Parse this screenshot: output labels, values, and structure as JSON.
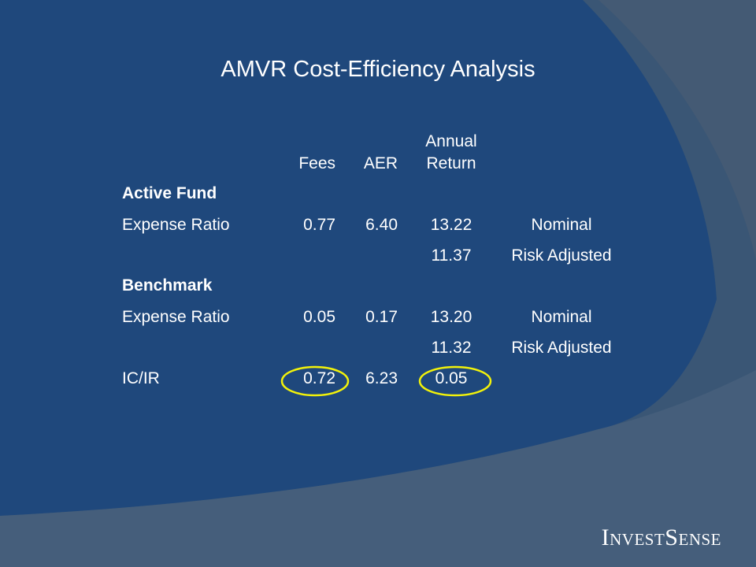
{
  "title": "AMVR Cost-Efficiency Analysis",
  "table": {
    "columns": [
      "Fees",
      "AER",
      "Annual Return"
    ],
    "rows": [
      {
        "heading": "Active Fund"
      },
      {
        "cells": [
          "Expense Ratio",
          "0.77",
          "6.40",
          "13.22",
          "Nominal"
        ]
      },
      {
        "cells": [
          null,
          null,
          null,
          "11.37",
          "Risk Adjusted"
        ]
      },
      {
        "heading": "Benchmark"
      },
      {
        "cells": [
          "Expense Ratio",
          "0.05",
          "0.17",
          "13.20",
          "Nominal"
        ]
      },
      {
        "cells": [
          null,
          null,
          null,
          "11.32",
          "Risk Adjusted"
        ]
      },
      {
        "cells": [
          "IC/IR",
          "0.72",
          "6.23",
          "0.05",
          null
        ]
      }
    ]
  },
  "logo": "InvestSense"
}
